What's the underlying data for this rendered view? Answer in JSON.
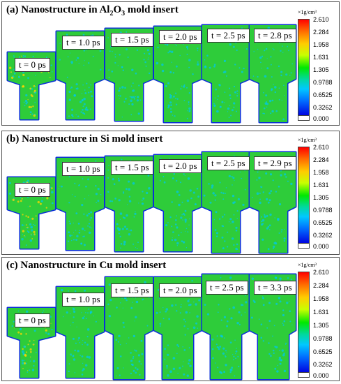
{
  "panels": [
    {
      "title_prefix": "(a) Nanostructure in Al",
      "title_sub1": "2",
      "title_mid": "O",
      "title_sub2": "3",
      "title_suffix": " mold insert",
      "times": [
        "t = 0 ps",
        "t = 1.0 ps",
        "t = 1.5 ps",
        "t = 2.0 ps",
        "t = 2.5 ps",
        "t = 2.8 ps"
      ]
    },
    {
      "title_prefix": "(b) Nanostructure in Si mold insert",
      "title_sub1": "",
      "title_mid": "",
      "title_sub2": "",
      "title_suffix": "",
      "times": [
        "t = 0 ps",
        "t = 1.0 ps",
        "t = 1.5 ps",
        "t = 2.0 ps",
        "t = 2.5 ps",
        "t = 2.9 ps"
      ]
    },
    {
      "title_prefix": "(c) Nanostructure in Cu mold insert",
      "title_sub1": "",
      "title_mid": "",
      "title_sub2": "",
      "title_suffix": "",
      "times": [
        "t = 0 ps",
        "t = 1.0 ps",
        "t = 1.5 ps",
        "t = 2.0 ps",
        "t = 2.5 ps",
        "t = 3.3 ps"
      ]
    }
  ],
  "colorbar": {
    "unit": "×1g/cm³",
    "ticks": [
      "2.610",
      "2.284",
      "1.958",
      "1.631",
      "1.305",
      "0.9788",
      "0.6525",
      "0.3262",
      "0.000"
    ]
  },
  "colors": {
    "fill_green": "#2ecc3a",
    "edge_blue": "#0a2fd8",
    "cyan": "#00c8e8",
    "hot": "#ffd500"
  }
}
